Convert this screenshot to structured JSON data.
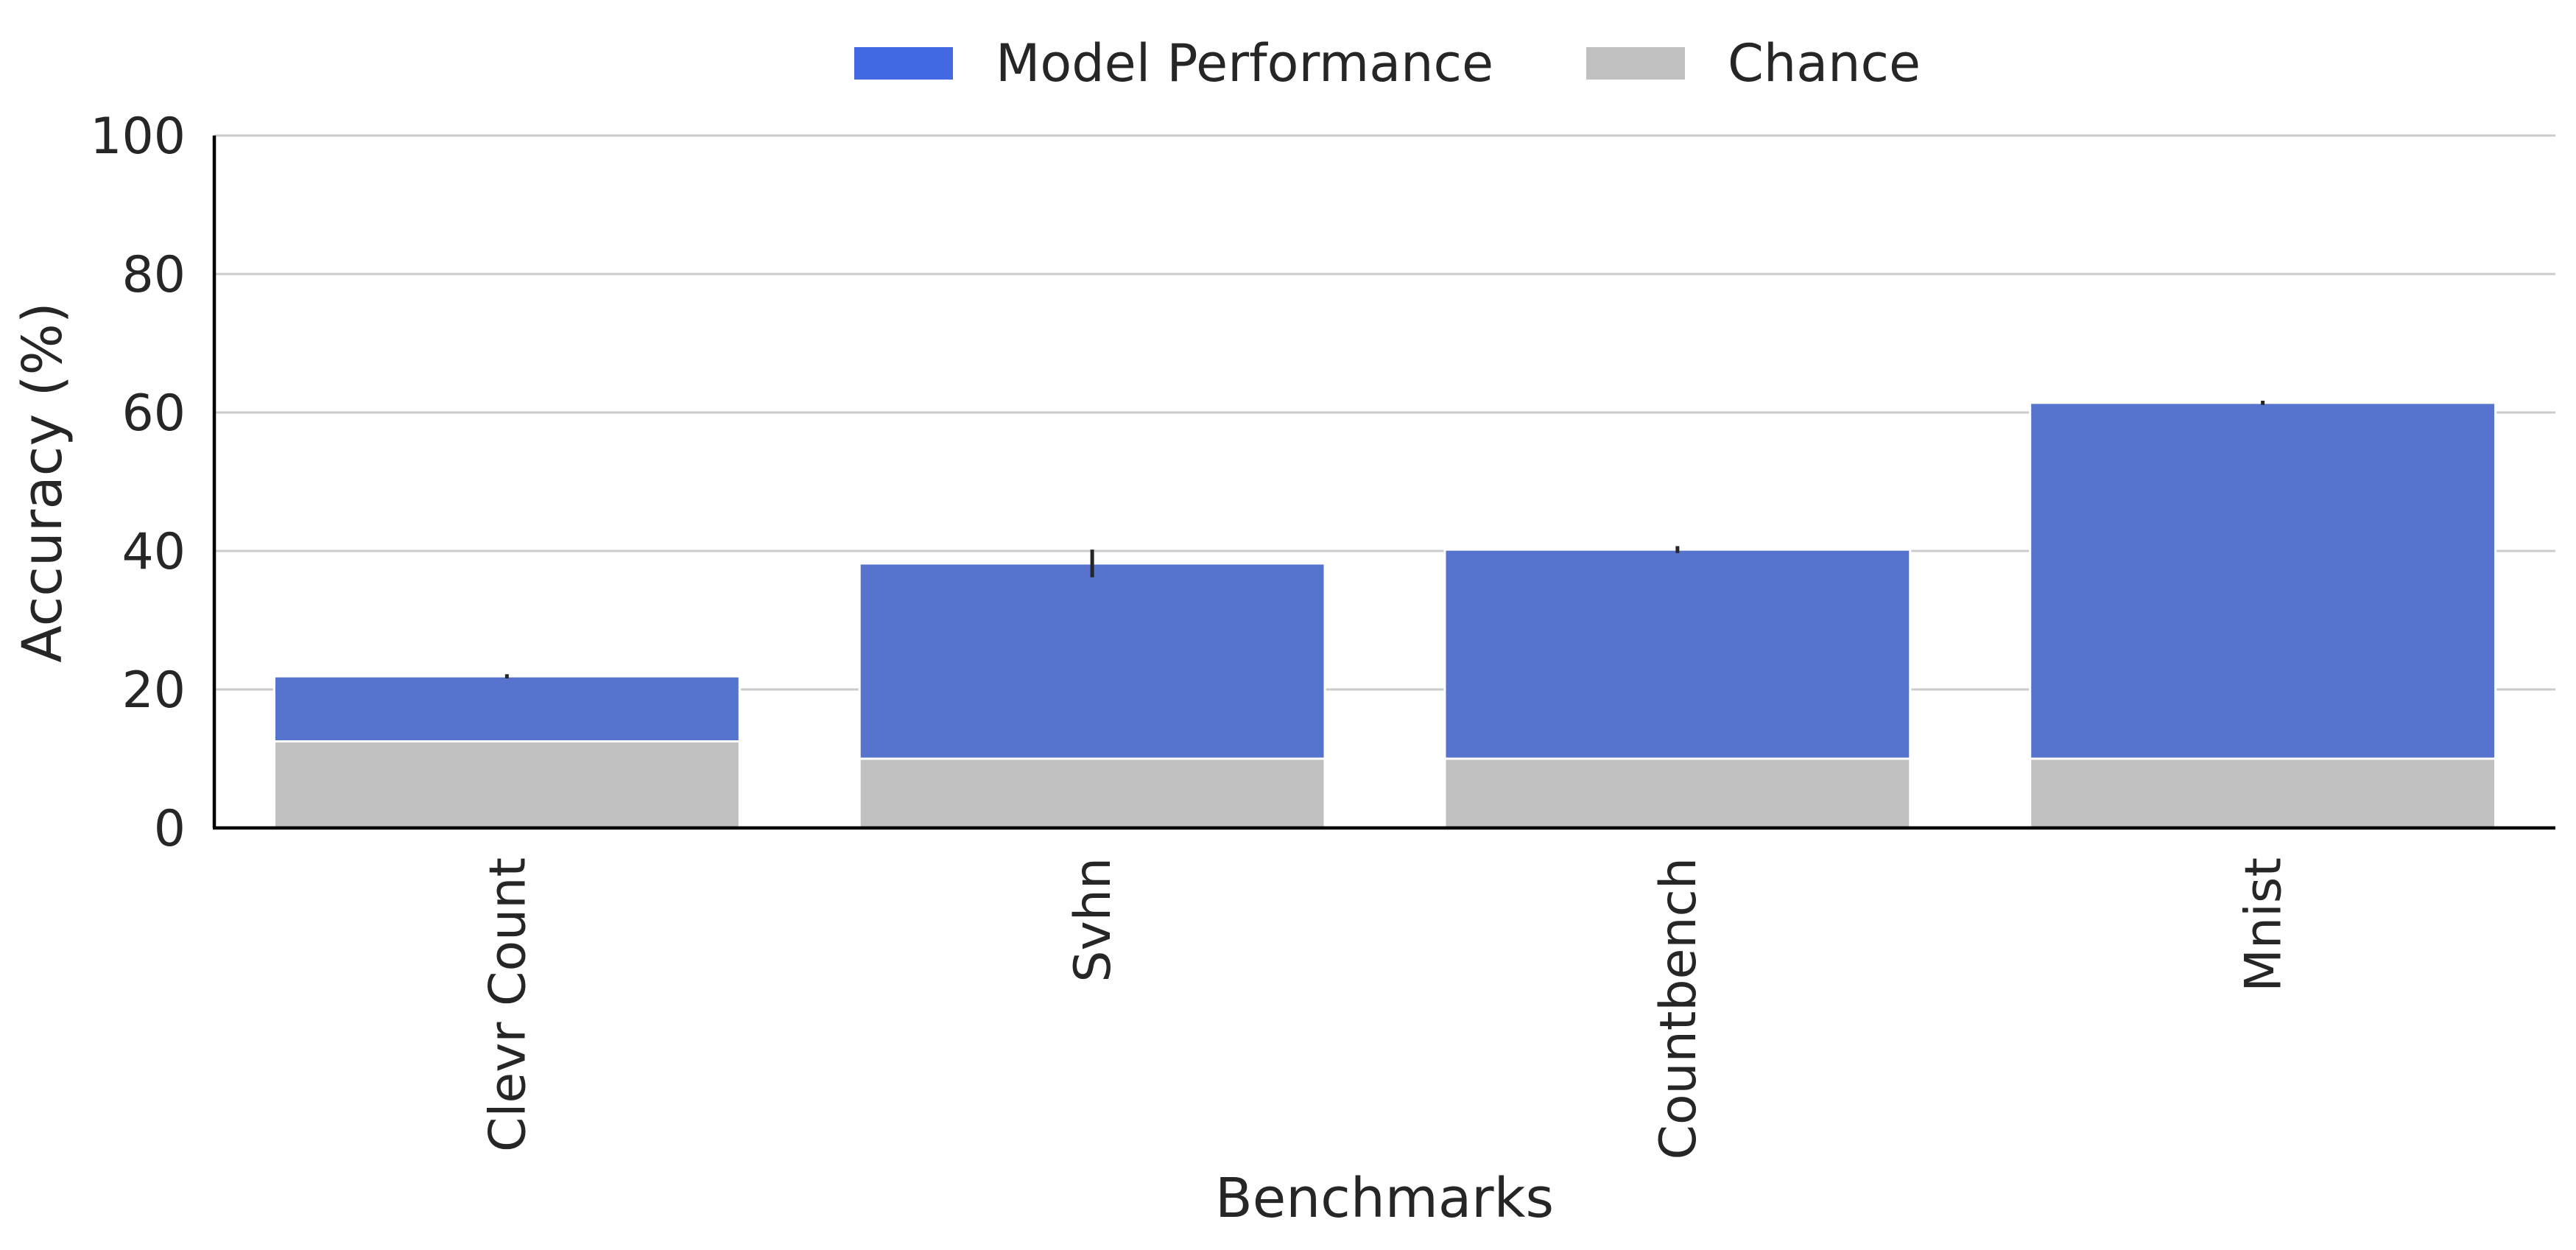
{
  "chart_data": {
    "type": "bar",
    "xlabel": "Benchmarks",
    "ylabel": "Accuracy (%)",
    "ylim": [
      0,
      100
    ],
    "yticks": [
      0,
      20,
      40,
      60,
      80,
      100
    ],
    "grid": "horizontal",
    "legend_position": "top-center",
    "categories": [
      "Clevr Count",
      "Svhn",
      "Countbench",
      "Mnist"
    ],
    "series": [
      {
        "name": "Model Performance",
        "color": "#5674CD",
        "legend_color": "#4169E1",
        "values": [
          21.9,
          38.2,
          40.2,
          61.4
        ],
        "error": [
          0.3,
          2.0,
          0.5,
          0.3
        ]
      },
      {
        "name": "Chance",
        "color": "#C0C0C0",
        "values": [
          12.5,
          10,
          10,
          10
        ]
      }
    ]
  }
}
